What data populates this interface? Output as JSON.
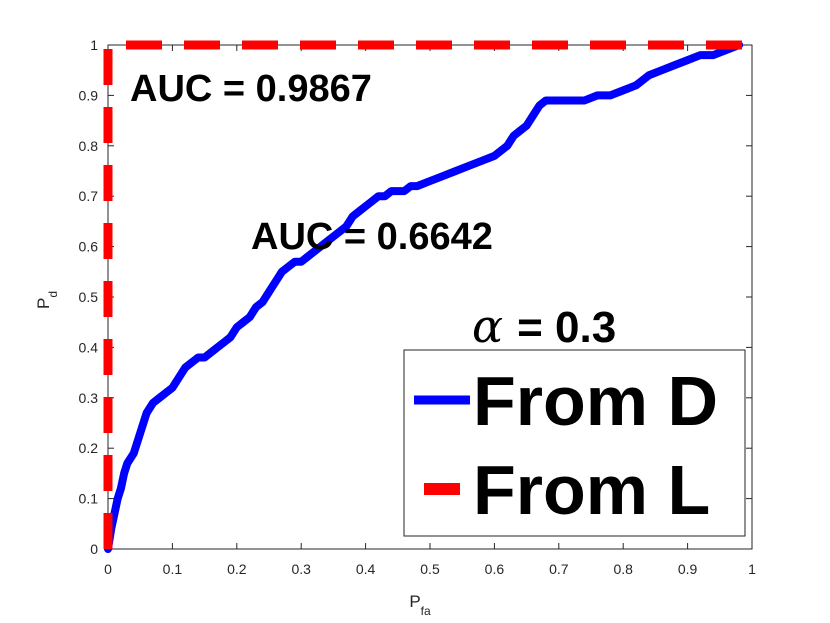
{
  "chart_data": {
    "type": "line",
    "title": "",
    "xlabel": "P",
    "xlabel_sub": "fa",
    "ylabel": "P",
    "ylabel_sub": "d",
    "xlim": [
      0,
      1
    ],
    "ylim": [
      0,
      1
    ],
    "grid": false,
    "legend_position": "bottom-right",
    "x_ticks": [
      "0",
      "0.1",
      "0.2",
      "0.3",
      "0.4",
      "0.5",
      "0.6",
      "0.7",
      "0.8",
      "0.9",
      "1"
    ],
    "y_ticks": [
      "0",
      "0.1",
      "0.2",
      "0.3",
      "0.4",
      "0.5",
      "0.6",
      "0.7",
      "0.8",
      "0.9",
      "1"
    ],
    "annotations": {
      "auc_l": "AUC = 0.9867",
      "auc_d": "AUC = 0.6642",
      "alpha_symbol": "α",
      "alpha_value": "= 0.3"
    },
    "series": [
      {
        "name": "From D",
        "color": "#0000ff",
        "style": "solid",
        "x": [
          0,
          0.005,
          0.01,
          0.015,
          0.02,
          0.025,
          0.03,
          0.04,
          0.05,
          0.055,
          0.06,
          0.07,
          0.08,
          0.09,
          0.1,
          0.11,
          0.12,
          0.13,
          0.14,
          0.15,
          0.16,
          0.17,
          0.18,
          0.19,
          0.2,
          0.21,
          0.22,
          0.23,
          0.24,
          0.25,
          0.26,
          0.27,
          0.28,
          0.29,
          0.3,
          0.31,
          0.32,
          0.33,
          0.34,
          0.35,
          0.36,
          0.37,
          0.38,
          0.39,
          0.4,
          0.41,
          0.42,
          0.43,
          0.44,
          0.45,
          0.46,
          0.47,
          0.48,
          0.5,
          0.52,
          0.54,
          0.56,
          0.58,
          0.6,
          0.62,
          0.63,
          0.64,
          0.65,
          0.66,
          0.67,
          0.68,
          0.7,
          0.72,
          0.74,
          0.76,
          0.78,
          0.8,
          0.82,
          0.84,
          0.86,
          0.88,
          0.9,
          0.92,
          0.94,
          0.96,
          0.98
        ],
        "y": [
          0,
          0.04,
          0.07,
          0.1,
          0.12,
          0.15,
          0.17,
          0.19,
          0.23,
          0.25,
          0.27,
          0.29,
          0.3,
          0.31,
          0.32,
          0.34,
          0.36,
          0.37,
          0.38,
          0.38,
          0.39,
          0.4,
          0.41,
          0.42,
          0.44,
          0.45,
          0.46,
          0.48,
          0.49,
          0.51,
          0.53,
          0.55,
          0.56,
          0.57,
          0.57,
          0.58,
          0.59,
          0.6,
          0.61,
          0.62,
          0.63,
          0.64,
          0.66,
          0.67,
          0.68,
          0.69,
          0.7,
          0.7,
          0.71,
          0.71,
          0.71,
          0.72,
          0.72,
          0.73,
          0.74,
          0.75,
          0.76,
          0.77,
          0.78,
          0.8,
          0.82,
          0.83,
          0.84,
          0.86,
          0.88,
          0.89,
          0.89,
          0.89,
          0.89,
          0.9,
          0.9,
          0.91,
          0.92,
          0.94,
          0.95,
          0.96,
          0.97,
          0.98,
          0.98,
          0.99,
          1.0
        ]
      },
      {
        "name": "From L",
        "color": "#ff0000",
        "style": "dashed",
        "x": [
          0,
          0,
          1
        ],
        "y": [
          0,
          1,
          1
        ]
      }
    ]
  }
}
